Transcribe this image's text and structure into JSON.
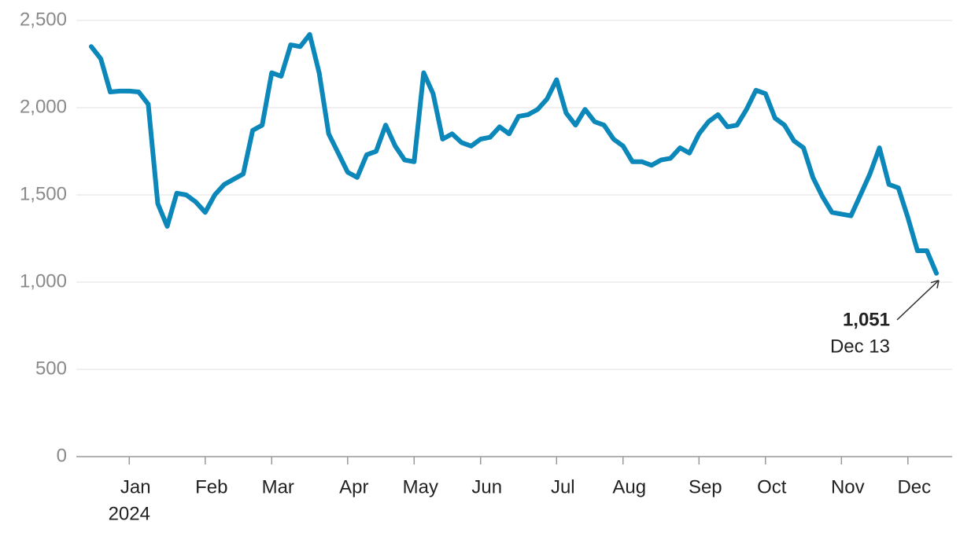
{
  "chart_data": {
    "type": "line",
    "categories": [
      null,
      null,
      null,
      null,
      "Jan",
      null,
      null,
      null,
      null,
      null,
      null,
      null,
      "Feb",
      null,
      null,
      null,
      null,
      null,
      null,
      "Mar",
      null,
      null,
      null,
      null,
      null,
      null,
      null,
      "Apr",
      null,
      null,
      null,
      null,
      null,
      null,
      "May",
      null,
      null,
      null,
      null,
      null,
      null,
      "Jun",
      null,
      null,
      null,
      null,
      null,
      null,
      null,
      "Jul",
      null,
      null,
      null,
      null,
      null,
      null,
      "Aug",
      null,
      null,
      null,
      null,
      null,
      null,
      null,
      "Sep",
      null,
      null,
      null,
      null,
      null,
      null,
      "Oct",
      null,
      null,
      null,
      null,
      null,
      null,
      null,
      "Nov",
      null,
      null,
      null,
      null,
      null,
      null,
      "Dec",
      null,
      null,
      null
    ],
    "year_label": "2024",
    "values": [
      2350,
      2280,
      2090,
      2095,
      2095,
      2090,
      2020,
      1450,
      1320,
      1510,
      1500,
      1460,
      1400,
      1500,
      1560,
      1590,
      1620,
      1870,
      1900,
      2200,
      2180,
      2360,
      2350,
      2420,
      2200,
      1850,
      1740,
      1630,
      1600,
      1730,
      1750,
      1900,
      1780,
      1700,
      1690,
      2200,
      2080,
      1820,
      1850,
      1800,
      1780,
      1820,
      1830,
      1890,
      1850,
      1950,
      1960,
      1990,
      2050,
      2160,
      1970,
      1900,
      1990,
      1920,
      1900,
      1820,
      1780,
      1690,
      1690,
      1670,
      1700,
      1710,
      1770,
      1740,
      1850,
      1920,
      1960,
      1890,
      1900,
      1990,
      2100,
      2080,
      1940,
      1900,
      1810,
      1770,
      1600,
      1490,
      1400,
      1390,
      1380,
      1500,
      1620,
      1770,
      1560,
      1540,
      1370,
      1180,
      1180,
      1051
    ],
    "color": "#0b87b9",
    "ylim": [
      0,
      2500
    ],
    "yticks": [
      0,
      500,
      {
        "value": 1000,
        "label": "1,000"
      },
      {
        "value": 1500,
        "label": "1,500"
      },
      {
        "value": 2000,
        "label": "2,000"
      },
      {
        "value": 2500,
        "label": "2,500"
      }
    ],
    "grid": true,
    "annotation": {
      "value": 1051,
      "label": "1,051",
      "date": "Dec 13"
    }
  }
}
